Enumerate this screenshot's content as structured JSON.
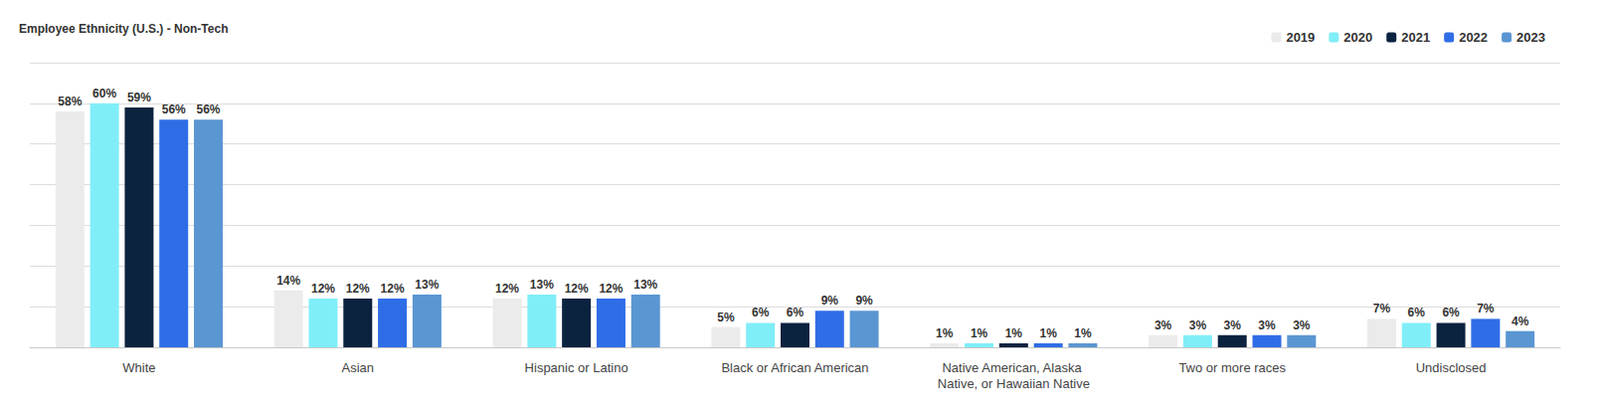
{
  "chart_data": {
    "type": "bar",
    "title": "Employee Ethnicity (U.S.) - Non-Tech",
    "categories": [
      "White",
      "Asian",
      "Hispanic or Latino",
      "Black or African American",
      "Native American, Alaska Native, or Hawaiian Native",
      "Two or more races",
      "Undisclosed"
    ],
    "series": [
      {
        "name": "2019",
        "color": "#ebebeb",
        "values": [
          58,
          14,
          12,
          5,
          1,
          3,
          7
        ],
        "value_labels": [
          "58%",
          "14%",
          "12%",
          "5%",
          "1%",
          "3%",
          "7%"
        ]
      },
      {
        "name": "2020",
        "color": "#80eef8",
        "values": [
          60,
          12,
          13,
          6,
          1,
          3,
          6
        ],
        "value_labels": [
          "60%",
          "12%",
          "13%",
          "6%",
          "1%",
          "3%",
          "6%"
        ]
      },
      {
        "name": "2021",
        "color": "#0c2340",
        "values": [
          59,
          12,
          12,
          6,
          1,
          3,
          6
        ],
        "value_labels": [
          "59%",
          "12%",
          "12%",
          "6%",
          "1%",
          "3%",
          "6%"
        ]
      },
      {
        "name": "2022",
        "color": "#2f6de6",
        "values": [
          56,
          12,
          12,
          9,
          1,
          3,
          7
        ],
        "value_labels": [
          "56%",
          "12%",
          "12%",
          "9%",
          "1%",
          "3%",
          "7%"
        ]
      },
      {
        "name": "2023",
        "color": "#5a96d2",
        "values": [
          56,
          13,
          13,
          9,
          1,
          3,
          4
        ],
        "value_labels": [
          "56%",
          "13%",
          "13%",
          "9%",
          "1%",
          "3%",
          "4%"
        ]
      }
    ],
    "ylim": [
      0,
      70
    ],
    "yticks": [
      0,
      10,
      20,
      30,
      40,
      50,
      60,
      70
    ],
    "grid": true,
    "legend": "top-right",
    "data_labels": true,
    "tick_labels": "x"
  }
}
